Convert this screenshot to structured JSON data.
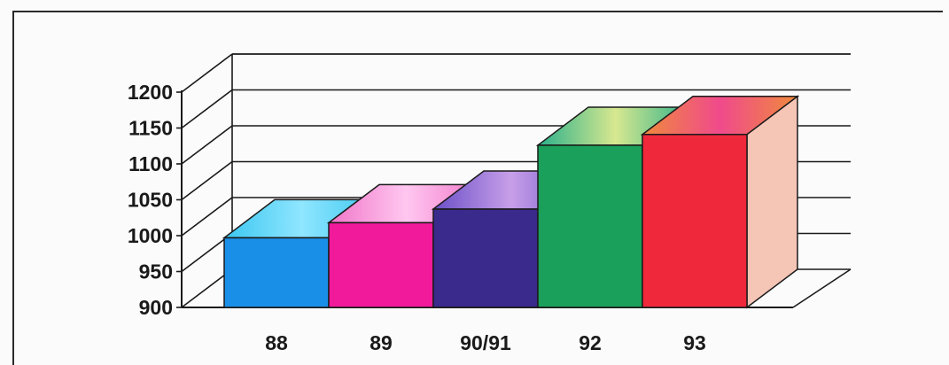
{
  "chart_data": {
    "type": "bar",
    "style": "3d",
    "categories": [
      "88",
      "89",
      "90/91",
      "92",
      "93"
    ],
    "values": [
      997,
      1018,
      1037,
      1126,
      1141
    ],
    "ylim": [
      900,
      1200
    ],
    "yticks": [
      900,
      950,
      1000,
      1050,
      1100,
      1150,
      1200
    ],
    "ytick_labels": [
      "900",
      "950",
      "1000",
      "1050",
      "1100",
      "1150",
      "1200"
    ],
    "grid": true,
    "title": "",
    "xlabel": "",
    "ylabel": "",
    "colors": {
      "88": {
        "front": "#1a8fe8",
        "top": "#3cc7f0",
        "top_accent": "#8fe6ff"
      },
      "89": {
        "front": "#f01a9a",
        "top": "#f075c8",
        "top_accent": "#ffc7f0"
      },
      "90/91": {
        "front": "#3a2a8c",
        "top": "#6a4fc8",
        "top_accent": "#c79fe8"
      },
      "92": {
        "front": "#1aa05a",
        "top": "#2ab08a",
        "top_accent": "#d8e890"
      },
      "93": {
        "front": "#f0283c",
        "top": "#f08a3c",
        "top_accent": "#f04a8c",
        "side": "#f5c5b5"
      }
    },
    "axis_color": "#1a1a1a"
  }
}
